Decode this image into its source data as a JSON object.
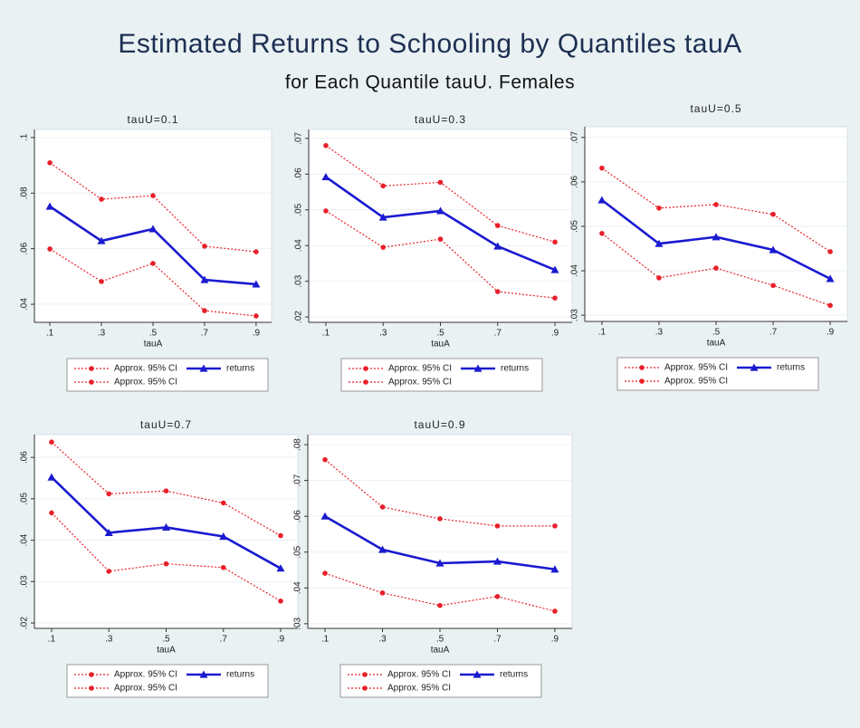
{
  "title": "Estimated Returns to Schooling by Quantiles tauA",
  "subtitle": "for Each Quantile tauU. Females",
  "chart_data": [
    {
      "type": "line",
      "title": "tauU=0.1",
      "x_label": "tauA",
      "x": [
        0.1,
        0.3,
        0.5,
        0.7,
        0.9
      ],
      "xlim": [
        0.04,
        0.96
      ],
      "xticks": [
        {
          "value": 0.1,
          "label": ".1"
        },
        {
          "value": 0.3,
          "label": ".3"
        },
        {
          "value": 0.5,
          "label": ".5"
        },
        {
          "value": 0.7,
          "label": ".7"
        },
        {
          "value": 0.9,
          "label": ".9"
        }
      ],
      "ylim": [
        0.0335,
        0.1029
      ],
      "yticks": [
        {
          "value": 0.04,
          "label": ".04"
        },
        {
          "value": 0.06,
          "label": ".06"
        },
        {
          "value": 0.08,
          "label": ".08"
        },
        {
          "value": 0.1,
          "label": ".1"
        }
      ],
      "grid": true,
      "series": [
        {
          "name": "Approx. 95% CI",
          "color": "#e8202a",
          "line_style": "dotted",
          "marker": "circle",
          "values": [
            0.0909,
            0.0778,
            0.0791,
            0.0609,
            0.0589
          ]
        },
        {
          "name": "returns",
          "color": "#1a1ad0",
          "line_style": "solid",
          "marker": "triangle",
          "values": [
            0.0752,
            0.0628,
            0.0671,
            0.0488,
            0.0472
          ]
        },
        {
          "name": "Approx. 95% CI",
          "color": "#e8202a",
          "line_style": "dotted",
          "marker": "circle",
          "values": [
            0.0599,
            0.0482,
            0.0547,
            0.0377,
            0.0358
          ]
        }
      ]
    },
    {
      "type": "line",
      "title": "tauU=0.3",
      "x_label": "tauA",
      "x": [
        0.1,
        0.3,
        0.5,
        0.7,
        0.9
      ],
      "xlim": [
        0.04,
        0.96
      ],
      "xticks": [
        {
          "value": 0.1,
          "label": ".1"
        },
        {
          "value": 0.3,
          "label": ".3"
        },
        {
          "value": 0.5,
          "label": ".5"
        },
        {
          "value": 0.7,
          "label": ".7"
        },
        {
          "value": 0.9,
          "label": ".9"
        }
      ],
      "ylim": [
        0.0185,
        0.0725
      ],
      "yticks": [
        {
          "value": 0.02,
          "label": ".02"
        },
        {
          "value": 0.03,
          "label": ".03"
        },
        {
          "value": 0.04,
          "label": ".04"
        },
        {
          "value": 0.05,
          "label": ".05"
        },
        {
          "value": 0.06,
          "label": ".06"
        },
        {
          "value": 0.07,
          "label": ".07"
        }
      ],
      "grid": true,
      "series": [
        {
          "name": "Approx. 95% CI",
          "color": "#e8202a",
          "line_style": "dotted",
          "marker": "circle",
          "values": [
            0.068,
            0.0567,
            0.0577,
            0.0456,
            0.041
          ]
        },
        {
          "name": "returns",
          "color": "#1a1ad0",
          "line_style": "solid",
          "marker": "triangle",
          "values": [
            0.0592,
            0.0479,
            0.0497,
            0.0398,
            0.0332
          ]
        },
        {
          "name": "Approx. 95% CI",
          "color": "#e8202a",
          "line_style": "dotted",
          "marker": "circle",
          "values": [
            0.0497,
            0.0395,
            0.0418,
            0.0271,
            0.0253
          ]
        }
      ]
    },
    {
      "type": "line",
      "title": "tauU=0.5",
      "x_label": "tauA",
      "x": [
        0.1,
        0.3,
        0.5,
        0.7,
        0.9
      ],
      "xlim": [
        0.04,
        0.96
      ],
      "xticks": [
        {
          "value": 0.1,
          "label": ".1"
        },
        {
          "value": 0.3,
          "label": ".3"
        },
        {
          "value": 0.5,
          "label": ".5"
        },
        {
          "value": 0.7,
          "label": ".7"
        },
        {
          "value": 0.9,
          "label": ".9"
        }
      ],
      "ylim": [
        0.0286,
        0.0724
      ],
      "yticks": [
        {
          "value": 0.03,
          "label": ".03"
        },
        {
          "value": 0.04,
          "label": ".04"
        },
        {
          "value": 0.05,
          "label": ".05"
        },
        {
          "value": 0.06,
          "label": ".06"
        },
        {
          "value": 0.07,
          "label": ".07"
        }
      ],
      "grid": true,
      "series": [
        {
          "name": "Approx. 95% CI",
          "color": "#e8202a",
          "line_style": "dotted",
          "marker": "circle",
          "values": [
            0.0631,
            0.0541,
            0.0549,
            0.0527,
            0.0443
          ]
        },
        {
          "name": "returns",
          "color": "#1a1ad0",
          "line_style": "solid",
          "marker": "triangle",
          "values": [
            0.0559,
            0.0461,
            0.0476,
            0.0447,
            0.0382
          ]
        },
        {
          "name": "Approx. 95% CI",
          "color": "#e8202a",
          "line_style": "dotted",
          "marker": "circle",
          "values": [
            0.0484,
            0.0384,
            0.0406,
            0.0367,
            0.0322
          ]
        }
      ]
    },
    {
      "type": "line",
      "title": "tauU=0.7",
      "x_label": "tauA",
      "x": [
        0.1,
        0.3,
        0.5,
        0.7,
        0.9
      ],
      "xlim": [
        0.04,
        0.96
      ],
      "xticks": [
        {
          "value": 0.1,
          "label": ".1"
        },
        {
          "value": 0.3,
          "label": ".3"
        },
        {
          "value": 0.5,
          "label": ".5"
        },
        {
          "value": 0.7,
          "label": ".7"
        },
        {
          "value": 0.9,
          "label": ".9"
        }
      ],
      "ylim": [
        0.0187,
        0.0655
      ],
      "yticks": [
        {
          "value": 0.02,
          "label": ".02"
        },
        {
          "value": 0.03,
          "label": ".03"
        },
        {
          "value": 0.04,
          "label": ".04"
        },
        {
          "value": 0.05,
          "label": ".05"
        },
        {
          "value": 0.06,
          "label": ".06"
        }
      ],
      "grid": true,
      "series": [
        {
          "name": "Approx. 95% CI",
          "color": "#e8202a",
          "line_style": "dotted",
          "marker": "circle",
          "values": [
            0.0637,
            0.0512,
            0.0519,
            0.049,
            0.0411
          ]
        },
        {
          "name": "returns",
          "color": "#1a1ad0",
          "line_style": "solid",
          "marker": "triangle",
          "values": [
            0.0552,
            0.0418,
            0.0431,
            0.0409,
            0.0332
          ]
        },
        {
          "name": "Approx. 95% CI",
          "color": "#e8202a",
          "line_style": "dotted",
          "marker": "circle",
          "values": [
            0.0466,
            0.0325,
            0.0343,
            0.0334,
            0.0253
          ]
        }
      ]
    },
    {
      "type": "line",
      "title": "tauU=0.9",
      "x_label": "tauA",
      "x": [
        0.1,
        0.3,
        0.5,
        0.7,
        0.9
      ],
      "xlim": [
        0.04,
        0.96
      ],
      "xticks": [
        {
          "value": 0.1,
          "label": ".1"
        },
        {
          "value": 0.3,
          "label": ".3"
        },
        {
          "value": 0.5,
          "label": ".5"
        },
        {
          "value": 0.7,
          "label": ".7"
        },
        {
          "value": 0.9,
          "label": ".9"
        }
      ],
      "ylim": [
        0.0287,
        0.0828
      ],
      "yticks": [
        {
          "value": 0.03,
          "label": ".03"
        },
        {
          "value": 0.04,
          "label": ".04"
        },
        {
          "value": 0.05,
          "label": ".05"
        },
        {
          "value": 0.06,
          "label": ".06"
        },
        {
          "value": 0.07,
          "label": ".07"
        },
        {
          "value": 0.08,
          "label": ".08"
        }
      ],
      "grid": true,
      "series": [
        {
          "name": "Approx. 95% CI",
          "color": "#e8202a",
          "line_style": "dotted",
          "marker": "circle",
          "values": [
            0.0758,
            0.0626,
            0.0593,
            0.0573,
            0.0573
          ]
        },
        {
          "name": "returns",
          "color": "#1a1ad0",
          "line_style": "solid",
          "marker": "triangle",
          "values": [
            0.06,
            0.0507,
            0.0469,
            0.0474,
            0.0452
          ]
        },
        {
          "name": "Approx. 95% CI",
          "color": "#e8202a",
          "line_style": "dotted",
          "marker": "circle",
          "values": [
            0.0441,
            0.0386,
            0.0351,
            0.0376,
            0.0335
          ]
        }
      ]
    }
  ]
}
